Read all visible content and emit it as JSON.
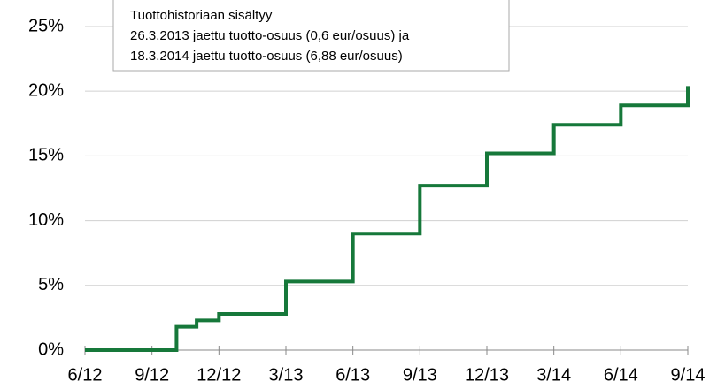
{
  "chart_data": {
    "type": "step-line",
    "annotation": [
      "Tuottohistoriaan sisältyy",
      "26.3.2013 jaettu tuotto-osuus (0,6 eur/osuus) ja",
      "18.3.2014 jaettu tuotto-osuus (6,88 eur/osuus)"
    ],
    "x": [
      0,
      4.1,
      5,
      6,
      9,
      12,
      15,
      18,
      21,
      24,
      27
    ],
    "series": [
      {
        "color": "#16783a",
        "values": [
          0,
          1.8,
          2.3,
          2.8,
          5.3,
          9.0,
          12.7,
          15.2,
          17.4,
          18.9,
          20.4
        ]
      }
    ],
    "xlim": [
      0,
      27
    ],
    "xticks": [
      {
        "value": 0,
        "label": "6/12"
      },
      {
        "value": 3,
        "label": "9/12"
      },
      {
        "value": 6,
        "label": "12/12"
      },
      {
        "value": 9,
        "label": "3/13"
      },
      {
        "value": 12,
        "label": "6/13"
      },
      {
        "value": 15,
        "label": "9/13"
      },
      {
        "value": 18,
        "label": "12/13"
      },
      {
        "value": 21,
        "label": "3/14"
      },
      {
        "value": 24,
        "label": "6/14"
      },
      {
        "value": 27,
        "label": "9/14"
      }
    ],
    "ylim": [
      0,
      27
    ],
    "yticks": [
      {
        "value": 0,
        "label": "0%"
      },
      {
        "value": 5,
        "label": "5%"
      },
      {
        "value": 10,
        "label": "10%"
      },
      {
        "value": 15,
        "label": "15%"
      },
      {
        "value": 20,
        "label": "20%"
      },
      {
        "value": 25,
        "label": "25%"
      }
    ],
    "grid": true
  }
}
